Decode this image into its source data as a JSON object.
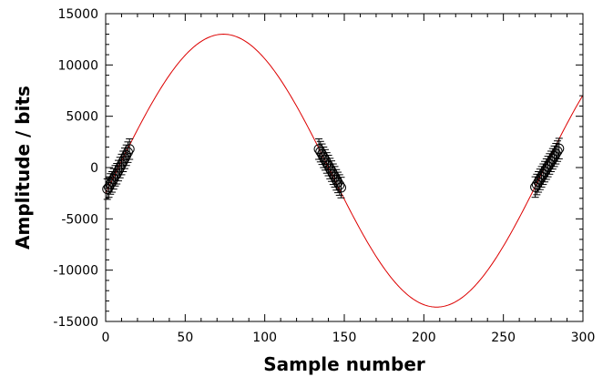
{
  "chart_data": {
    "type": "scatter",
    "title": "",
    "xlabel": "Sample number",
    "ylabel": "Amplitude / bits",
    "xlim": [
      0,
      300
    ],
    "ylim": [
      -15000,
      15000
    ],
    "x_ticks": [
      0,
      50,
      100,
      150,
      200,
      250,
      300
    ],
    "y_ticks": [
      -15000,
      -10000,
      -5000,
      0,
      5000,
      10000,
      15000
    ],
    "grid": false,
    "legend": "none",
    "colors": {
      "points": "#000000",
      "fit": "#dd0000",
      "axes": "#000000"
    },
    "series": [
      {
        "type": "scatter",
        "marker": "open-circle",
        "error_bars": true,
        "yerr": 1000,
        "points": [
          {
            "x": 1,
            "y": -2100
          },
          {
            "x": 2,
            "y": -1900
          },
          {
            "x": 3,
            "y": -1600
          },
          {
            "x": 4,
            "y": -1400
          },
          {
            "x": 5,
            "y": -1100
          },
          {
            "x": 6,
            "y": -800
          },
          {
            "x": 7,
            "y": -600
          },
          {
            "x": 8,
            "y": -300
          },
          {
            "x": 9,
            "y": 0
          },
          {
            "x": 10,
            "y": 300
          },
          {
            "x": 11,
            "y": 600
          },
          {
            "x": 12,
            "y": 900
          },
          {
            "x": 13,
            "y": 1200
          },
          {
            "x": 14,
            "y": 1500
          },
          {
            "x": 15,
            "y": 1800
          },
          {
            "x": 134,
            "y": 1800
          },
          {
            "x": 135,
            "y": 1550
          },
          {
            "x": 136,
            "y": 1300
          },
          {
            "x": 137,
            "y": 1000
          },
          {
            "x": 138,
            "y": 750
          },
          {
            "x": 139,
            "y": 450
          },
          {
            "x": 140,
            "y": 200
          },
          {
            "x": 141,
            "y": -100
          },
          {
            "x": 142,
            "y": -350
          },
          {
            "x": 143,
            "y": -650
          },
          {
            "x": 144,
            "y": -900
          },
          {
            "x": 145,
            "y": -1200
          },
          {
            "x": 146,
            "y": -1450
          },
          {
            "x": 147,
            "y": -1700
          },
          {
            "x": 148,
            "y": -1950
          },
          {
            "x": 270,
            "y": -1900
          },
          {
            "x": 271,
            "y": -1650
          },
          {
            "x": 272,
            "y": -1400
          },
          {
            "x": 273,
            "y": -1150
          },
          {
            "x": 274,
            "y": -900
          },
          {
            "x": 275,
            "y": -650
          },
          {
            "x": 276,
            "y": -400
          },
          {
            "x": 277,
            "y": -150
          },
          {
            "x": 278,
            "y": 100
          },
          {
            "x": 279,
            "y": 350
          },
          {
            "x": 280,
            "y": 600
          },
          {
            "x": 281,
            "y": 850
          },
          {
            "x": 282,
            "y": 1100
          },
          {
            "x": 283,
            "y": 1350
          },
          {
            "x": 284,
            "y": 1600
          },
          {
            "x": 285,
            "y": 1850
          }
        ]
      },
      {
        "type": "line",
        "model": "sine",
        "amplitude": 13300,
        "offset": -300,
        "period": 268,
        "zero_crossing_x": 7,
        "x_range": [
          0,
          300
        ]
      }
    ]
  }
}
